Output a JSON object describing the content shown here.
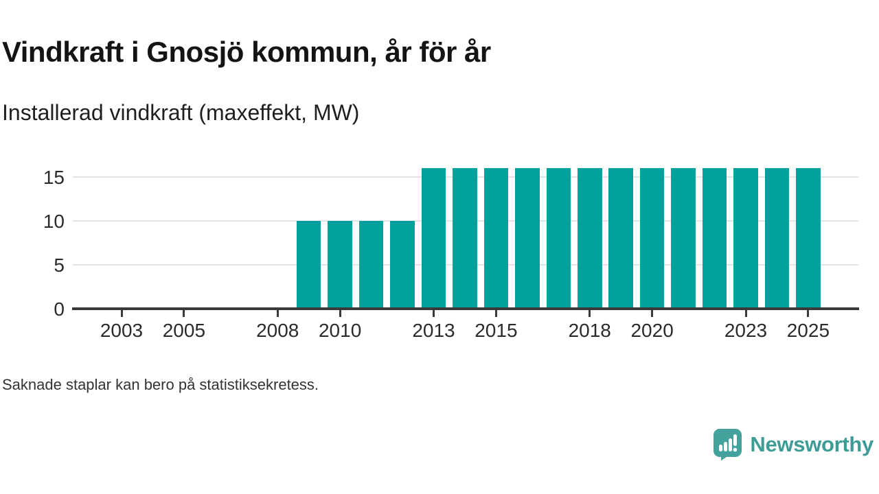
{
  "header": {
    "title": "Vindkraft i Gnosjö kommun, år för år",
    "subtitle": "Installerad vindkraft (maxeffekt, MW)"
  },
  "chart_data": {
    "type": "bar",
    "x": [
      2009,
      2010,
      2011,
      2012,
      2013,
      2014,
      2015,
      2016,
      2017,
      2018,
      2019,
      2020,
      2021,
      2022,
      2023,
      2024,
      2025
    ],
    "values": [
      10,
      10,
      10,
      10,
      16,
      16,
      16,
      16,
      16,
      16,
      16,
      16,
      16,
      16,
      16,
      16,
      16
    ],
    "title": "Vindkraft i Gnosjö kommun, år för år",
    "subtitle": "Installerad vindkraft (maxeffekt, MW)",
    "xlabel": "",
    "ylabel": "MW",
    "yticks": [
      0,
      5,
      10,
      15
    ],
    "xticks": [
      2003,
      2005,
      2008,
      2010,
      2013,
      2015,
      2018,
      2020,
      2023,
      2025
    ],
    "ylim": [
      0,
      17
    ],
    "xlim": [
      2001.5,
      2026.5
    ],
    "grid": "horizontal",
    "legend": "none",
    "bar_color": "#00a19a"
  },
  "footer": {
    "note": "Saknade staplar kan bero på statistiksekretess.",
    "brand_name": "Newsworthy",
    "brand_icon": "speech-bubble-bar-chart-icon",
    "brand_color": "#3d9c95"
  },
  "colors": {
    "bar": "#00a19a",
    "axis_line": "#3a3a3a",
    "gridline": "#e4e4e4",
    "tick_text": "#2b2b2b",
    "title_text": "#141414",
    "background": "#ffffff"
  }
}
